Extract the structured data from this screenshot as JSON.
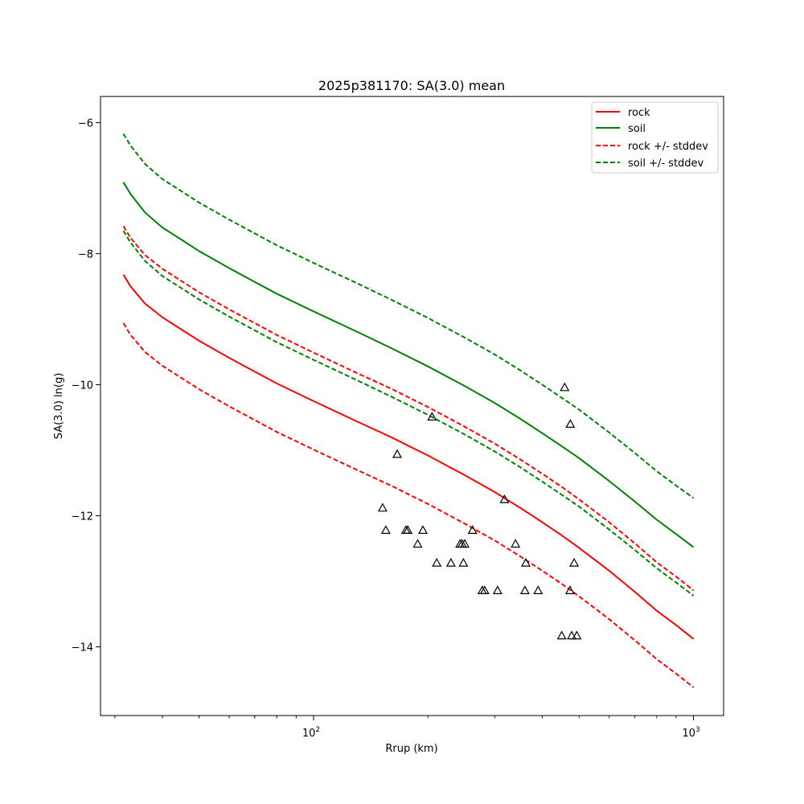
{
  "chart_data": {
    "type": "line",
    "title": "2025p381170: SA(3.0) mean",
    "xlabel": "Rrup (km)",
    "ylabel": "SA(3.0) ln(g)",
    "xscale": "log",
    "xlim": [
      27.5,
      1200
    ],
    "ylim": [
      -15.05,
      -5.6
    ],
    "grid": false,
    "legend_position": "top-right",
    "x_ticks": [
      {
        "value": 100,
        "base": "10",
        "exp": "2"
      },
      {
        "value": 1000,
        "base": "10",
        "exp": "3"
      }
    ],
    "y_ticks": [
      {
        "value": -6,
        "label": "−6"
      },
      {
        "value": -8,
        "label": "−8"
      },
      {
        "value": -10,
        "label": "−10"
      },
      {
        "value": -12,
        "label": "−12"
      },
      {
        "value": -14,
        "label": "−14"
      }
    ],
    "x": [
      31.6,
      33,
      36,
      40,
      45,
      50,
      60,
      70,
      80,
      100,
      130,
      160,
      200,
      250,
      300,
      350,
      400,
      450,
      500,
      600,
      700,
      800,
      900,
      1000
    ],
    "series": [
      {
        "name": "rock",
        "color": "#ff0000",
        "style": "solid",
        "values": [
          -8.32,
          -8.5,
          -8.76,
          -8.97,
          -9.16,
          -9.33,
          -9.59,
          -9.8,
          -9.98,
          -10.25,
          -10.56,
          -10.8,
          -11.08,
          -11.38,
          -11.64,
          -11.88,
          -12.1,
          -12.3,
          -12.49,
          -12.84,
          -13.16,
          -13.45,
          -13.67,
          -13.88
        ]
      },
      {
        "name": "soil",
        "color": "#008000",
        "style": "solid",
        "values": [
          -6.91,
          -7.09,
          -7.37,
          -7.6,
          -7.79,
          -7.96,
          -8.22,
          -8.43,
          -8.61,
          -8.88,
          -9.19,
          -9.44,
          -9.72,
          -10.02,
          -10.28,
          -10.52,
          -10.74,
          -10.94,
          -11.12,
          -11.47,
          -11.78,
          -12.06,
          -12.28,
          -12.48
        ]
      },
      {
        "name": "rock +/- stddev",
        "color": "#ff0000",
        "style": "dashed",
        "values": [
          -7.58,
          -7.76,
          -8.02,
          -8.23,
          -8.42,
          -8.59,
          -8.85,
          -9.06,
          -9.24,
          -9.51,
          -9.82,
          -10.06,
          -10.34,
          -10.64,
          -10.9,
          -11.14,
          -11.36,
          -11.56,
          -11.75,
          -12.1,
          -12.42,
          -12.71,
          -12.93,
          -13.14
        ]
      },
      {
        "name": "",
        "color": "#ff0000",
        "style": "dashed",
        "values": [
          -9.06,
          -9.24,
          -9.5,
          -9.71,
          -9.9,
          -10.07,
          -10.33,
          -10.54,
          -10.72,
          -10.99,
          -11.3,
          -11.54,
          -11.82,
          -12.12,
          -12.38,
          -12.62,
          -12.84,
          -13.04,
          -13.23,
          -13.58,
          -13.9,
          -14.19,
          -14.41,
          -14.62
        ]
      },
      {
        "name": "soil +/- stddev",
        "color": "#008000",
        "style": "dashed",
        "values": [
          -6.17,
          -6.35,
          -6.63,
          -6.86,
          -7.05,
          -7.22,
          -7.48,
          -7.69,
          -7.87,
          -8.14,
          -8.45,
          -8.7,
          -8.98,
          -9.28,
          -9.54,
          -9.78,
          -10.0,
          -10.2,
          -10.38,
          -10.73,
          -11.04,
          -11.32,
          -11.54,
          -11.73
        ]
      },
      {
        "name": "",
        "color": "#008000",
        "style": "dashed",
        "values": [
          -7.65,
          -7.83,
          -8.11,
          -8.34,
          -8.53,
          -8.7,
          -8.96,
          -9.17,
          -9.35,
          -9.62,
          -9.93,
          -10.18,
          -10.46,
          -10.76,
          -11.02,
          -11.26,
          -11.48,
          -11.68,
          -11.86,
          -12.21,
          -12.52,
          -12.8,
          -13.02,
          -13.22
        ]
      }
    ],
    "observations": {
      "marker": "triangle",
      "points": [
        [
          152,
          -11.88
        ],
        [
          155,
          -12.22
        ],
        [
          166,
          -11.06
        ],
        [
          175,
          -12.22
        ],
        [
          177,
          -12.22
        ],
        [
          188,
          -12.43
        ],
        [
          194,
          -12.22
        ],
        [
          205,
          -10.49
        ],
        [
          211,
          -12.72
        ],
        [
          230,
          -12.72
        ],
        [
          243,
          -12.43
        ],
        [
          246,
          -12.43
        ],
        [
          248,
          -12.72
        ],
        [
          250,
          -12.43
        ],
        [
          262,
          -12.22
        ],
        [
          278,
          -13.14
        ],
        [
          282,
          -13.14
        ],
        [
          305,
          -13.14
        ],
        [
          318,
          -11.75
        ],
        [
          340,
          -12.43
        ],
        [
          360,
          -13.14
        ],
        [
          362,
          -12.72
        ],
        [
          390,
          -13.14
        ],
        [
          450,
          -13.83
        ],
        [
          458,
          -10.04
        ],
        [
          473,
          -13.14
        ],
        [
          474,
          -10.6
        ],
        [
          478,
          -13.83
        ],
        [
          485,
          -12.72
        ],
        [
          493,
          -13.83
        ]
      ]
    }
  }
}
